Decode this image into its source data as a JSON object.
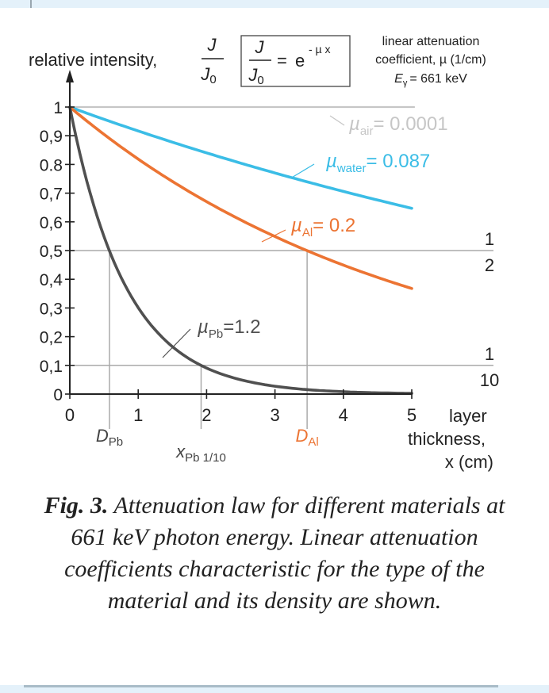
{
  "chart_data": {
    "type": "line",
    "y_title": "relative intensity,",
    "fraction": {
      "numerator": "J",
      "denominator": "J",
      "denominator_sub": "0"
    },
    "formula": {
      "lhs_num": "J",
      "lhs_den": "J",
      "lhs_den_sub": "0",
      "equals": "=",
      "base": "e",
      "exponent": "- µ x"
    },
    "info_box": [
      "linear attenuation",
      "coefficient, µ (1/cm)",
      "E",
      "γ",
      "= 661 keV"
    ],
    "x_label": [
      "layer",
      "thickness,",
      "x (cm)"
    ],
    "x_range": [
      0,
      5
    ],
    "y_range": [
      0,
      1
    ],
    "x_ticks": [
      "0",
      "1",
      "2",
      "3",
      "4",
      "5"
    ],
    "y_ticks": [
      "0",
      "0,1",
      "0,2",
      "0,3",
      "0,4",
      "0,5",
      "0,6",
      "0,7",
      "0.8",
      "0,9",
      "1"
    ],
    "fraction_marks": [
      {
        "value": 0.5,
        "num": "1",
        "den": "2"
      },
      {
        "value": 0.1,
        "num": "1",
        "den": "10"
      }
    ],
    "series": [
      {
        "key": "air",
        "mu": 0.0001,
        "sym": "µ",
        "sub": "air",
        "eq": "= 0.0001",
        "color": "#c6c6c6"
      },
      {
        "key": "water",
        "mu": 0.087,
        "sym": "µ",
        "sub": "water",
        "eq": "= 0.087",
        "color": "#3bbde6"
      },
      {
        "key": "al",
        "mu": 0.2,
        "sym": "µ",
        "sub": "Al",
        "eq": "= 0.2",
        "color": "#ec7433"
      },
      {
        "key": "pb",
        "mu": 1.2,
        "sym": "µ",
        "sub": "Pb",
        "eq": "=1.2",
        "color": "#505050"
      }
    ],
    "markers": [
      {
        "key": "d_pb",
        "x": 0.58,
        "main": "D",
        "sub": "Pb"
      },
      {
        "key": "x_pb",
        "x": 1.92,
        "main": "x",
        "sub": "Pb 1/10"
      },
      {
        "key": "d_al",
        "x": 3.47,
        "main": "D",
        "sub": "Al"
      }
    ]
  },
  "caption": {
    "lead": "Fig. 3.",
    "text": " Attenuation law for different materials at 661 keV photon energy. Linear attenuation coefficients characteristic for the type of the material and its density are shown."
  },
  "colors": {
    "band": "#e4f1fa",
    "axis": "#222222",
    "grid": "#aaaaaa",
    "air": "#c6c6c6",
    "water": "#3bbde6",
    "al": "#ec7433",
    "pb": "#505050"
  }
}
